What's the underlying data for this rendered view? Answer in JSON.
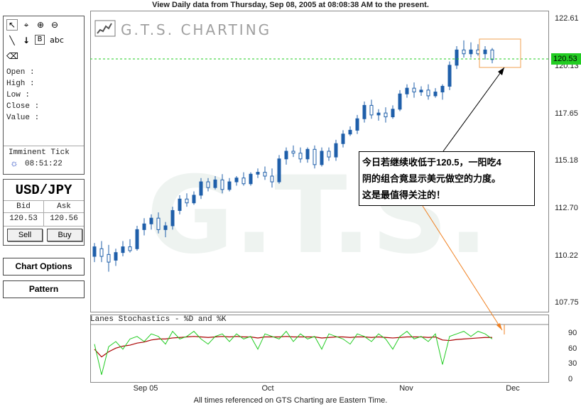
{
  "header": {
    "title": "View Daily  data from Thursday, Sep 08, 2005 at 08:08:38 AM to the present."
  },
  "footer": {
    "text": "All times referenced on GTS Charting are Eastern Time."
  },
  "toolbox": {
    "tools": [
      {
        "name": "pointer-icon",
        "glyph": "↖"
      },
      {
        "name": "crosshair-icon",
        "glyph": "⌖"
      },
      {
        "name": "zoom-in-icon",
        "glyph": "⊕"
      },
      {
        "name": "zoom-out-icon",
        "glyph": "⊖"
      },
      {
        "name": "line-tool-icon",
        "glyph": "╲"
      },
      {
        "name": "arrow-down-icon",
        "glyph": "↓"
      },
      {
        "name": "text-box-icon",
        "glyph": "B"
      },
      {
        "name": "text-tool-icon",
        "glyph": "abc"
      },
      {
        "name": "eraser-icon",
        "glyph": "⌫"
      }
    ],
    "labels": {
      "open": "Open :",
      "high": "High :",
      "low": "Low :",
      "close": "Close :",
      "value": "Value :"
    },
    "imminent_tick_label": "Imminent Tick",
    "imminent_tick_time": "08:51:22",
    "tick_icon": "sun-icon"
  },
  "quote": {
    "pair": "USD/JPY",
    "bid_label": "Bid",
    "ask_label": "Ask",
    "bid": "120.53",
    "ask": "120.56",
    "sell_label": "Sell",
    "buy_label": "Buy"
  },
  "buttons": {
    "chart_options": "Chart Options",
    "pattern": "Pattern"
  },
  "logo": {
    "text": "G.T.S. CHARTING",
    "watermark": "G.T.S."
  },
  "annotation": {
    "text": "今日若继续收低于120.5，一阳吃4\n阴的组合竟显示美元做空的力度。\n这是最值得关注的！"
  },
  "current_price": "120.53",
  "colors": {
    "up_candle": "#1f5faa",
    "price_line": "#22cc22",
    "k_line": "#22cc22",
    "d_line": "#aa0000",
    "highlight_box": "#f0a050",
    "annotation_arrow": "#f08020"
  },
  "chart_data": {
    "type": "candlestick",
    "price_axis": {
      "ticks": [
        "122.61",
        "120.13",
        "117.65",
        "115.18",
        "112.70",
        "110.22",
        "107.75"
      ],
      "ylim": [
        107.75,
        122.61
      ]
    },
    "x_labels": [
      "Sep 05",
      "Oct",
      "Nov",
      "Dec"
    ],
    "indicator": {
      "title": "Lanes Stochastics - %D and %K",
      "ticks": [
        "90",
        "60",
        "30",
        "0"
      ],
      "ylim": [
        0,
        100
      ],
      "k_values": [
        70,
        10,
        65,
        75,
        60,
        80,
        85,
        75,
        90,
        85,
        70,
        95,
        80,
        85,
        95,
        80,
        70,
        85,
        90,
        75,
        90,
        80,
        85,
        60,
        90,
        85,
        80,
        95,
        75,
        90,
        80,
        85,
        60,
        90,
        85,
        80,
        70,
        90,
        85,
        75,
        90,
        80,
        60,
        85,
        95,
        80,
        85,
        75,
        90,
        30,
        85,
        90,
        95,
        85,
        95,
        90,
        80
      ],
      "d_values": [
        60,
        45,
        55,
        62,
        66,
        68,
        72,
        74,
        78,
        80,
        80,
        82,
        83,
        84,
        85,
        84,
        83,
        84,
        85,
        84,
        85,
        84,
        84,
        82,
        84,
        84,
        84,
        85,
        84,
        84,
        84,
        84,
        82,
        83,
        84,
        84,
        83,
        84,
        84,
        83,
        84,
        83,
        82,
        83,
        84,
        84,
        84,
        83,
        84,
        78,
        77,
        79,
        80,
        81,
        82,
        83,
        83
      ]
    },
    "candles": [
      {
        "o": 110.2,
        "h": 110.9,
        "l": 109.9,
        "c": 110.7
      },
      {
        "o": 110.6,
        "h": 111.0,
        "l": 109.9,
        "c": 110.2
      },
      {
        "o": 110.3,
        "h": 110.8,
        "l": 109.4,
        "c": 109.9
      },
      {
        "o": 110.0,
        "h": 110.6,
        "l": 109.7,
        "c": 110.4
      },
      {
        "o": 110.4,
        "h": 111.0,
        "l": 110.2,
        "c": 110.7
      },
      {
        "o": 110.7,
        "h": 111.1,
        "l": 110.4,
        "c": 110.5
      },
      {
        "o": 110.6,
        "h": 111.8,
        "l": 110.5,
        "c": 111.6
      },
      {
        "o": 111.6,
        "h": 112.2,
        "l": 111.3,
        "c": 111.9
      },
      {
        "o": 111.9,
        "h": 112.4,
        "l": 111.6,
        "c": 112.2
      },
      {
        "o": 112.2,
        "h": 112.5,
        "l": 111.4,
        "c": 111.6
      },
      {
        "o": 111.6,
        "h": 112.0,
        "l": 111.2,
        "c": 111.8
      },
      {
        "o": 111.8,
        "h": 112.8,
        "l": 111.6,
        "c": 112.6
      },
      {
        "o": 112.6,
        "h": 113.4,
        "l": 112.4,
        "c": 113.2
      },
      {
        "o": 113.2,
        "h": 113.5,
        "l": 112.8,
        "c": 113.0
      },
      {
        "o": 113.0,
        "h": 113.6,
        "l": 112.9,
        "c": 113.4
      },
      {
        "o": 113.4,
        "h": 114.3,
        "l": 113.2,
        "c": 114.1
      },
      {
        "o": 114.1,
        "h": 114.3,
        "l": 113.6,
        "c": 113.8
      },
      {
        "o": 113.8,
        "h": 114.4,
        "l": 113.7,
        "c": 114.2
      },
      {
        "o": 114.2,
        "h": 114.5,
        "l": 113.5,
        "c": 113.7
      },
      {
        "o": 113.7,
        "h": 114.3,
        "l": 113.6,
        "c": 114.1
      },
      {
        "o": 114.1,
        "h": 114.4,
        "l": 113.9,
        "c": 114.3
      },
      {
        "o": 114.3,
        "h": 114.6,
        "l": 113.9,
        "c": 114.0
      },
      {
        "o": 114.0,
        "h": 114.6,
        "l": 113.9,
        "c": 114.5
      },
      {
        "o": 114.5,
        "h": 114.8,
        "l": 114.3,
        "c": 114.6
      },
      {
        "o": 114.6,
        "h": 114.9,
        "l": 114.2,
        "c": 114.4
      },
      {
        "o": 114.4,
        "h": 114.8,
        "l": 113.8,
        "c": 114.1
      },
      {
        "o": 114.1,
        "h": 115.5,
        "l": 114.0,
        "c": 115.3
      },
      {
        "o": 115.3,
        "h": 115.9,
        "l": 115.0,
        "c": 115.7
      },
      {
        "o": 115.7,
        "h": 116.0,
        "l": 115.4,
        "c": 115.6
      },
      {
        "o": 115.6,
        "h": 115.9,
        "l": 115.1,
        "c": 115.3
      },
      {
        "o": 115.3,
        "h": 115.9,
        "l": 115.1,
        "c": 115.8
      },
      {
        "o": 115.8,
        "h": 116.0,
        "l": 114.8,
        "c": 115.0
      },
      {
        "o": 115.0,
        "h": 115.9,
        "l": 114.9,
        "c": 115.7
      },
      {
        "o": 115.7,
        "h": 115.9,
        "l": 115.2,
        "c": 115.4
      },
      {
        "o": 115.4,
        "h": 116.3,
        "l": 115.2,
        "c": 116.1
      },
      {
        "o": 116.1,
        "h": 116.8,
        "l": 115.9,
        "c": 116.6
      },
      {
        "o": 116.6,
        "h": 117.0,
        "l": 116.5,
        "c": 116.8
      },
      {
        "o": 116.8,
        "h": 117.6,
        "l": 116.6,
        "c": 117.4
      },
      {
        "o": 117.4,
        "h": 118.3,
        "l": 117.2,
        "c": 118.1
      },
      {
        "o": 118.1,
        "h": 118.4,
        "l": 117.4,
        "c": 117.6
      },
      {
        "o": 117.6,
        "h": 117.9,
        "l": 117.3,
        "c": 117.7
      },
      {
        "o": 117.7,
        "h": 118.0,
        "l": 117.2,
        "c": 117.5
      },
      {
        "o": 117.5,
        "h": 118.1,
        "l": 117.4,
        "c": 117.9
      },
      {
        "o": 117.9,
        "h": 118.9,
        "l": 117.8,
        "c": 118.7
      },
      {
        "o": 118.7,
        "h": 119.2,
        "l": 118.5,
        "c": 119.0
      },
      {
        "o": 119.0,
        "h": 119.3,
        "l": 118.5,
        "c": 118.8
      },
      {
        "o": 118.8,
        "h": 119.1,
        "l": 118.6,
        "c": 118.9
      },
      {
        "o": 118.9,
        "h": 119.2,
        "l": 118.4,
        "c": 118.6
      },
      {
        "o": 118.6,
        "h": 119.0,
        "l": 118.5,
        "c": 118.8
      },
      {
        "o": 118.8,
        "h": 119.2,
        "l": 118.4,
        "c": 119.1
      },
      {
        "o": 119.1,
        "h": 120.4,
        "l": 118.9,
        "c": 120.2
      },
      {
        "o": 120.2,
        "h": 121.2,
        "l": 120.0,
        "c": 121.0
      },
      {
        "o": 121.0,
        "h": 121.5,
        "l": 120.6,
        "c": 120.8
      },
      {
        "o": 120.8,
        "h": 121.4,
        "l": 120.6,
        "c": 121.0
      },
      {
        "o": 121.0,
        "h": 121.3,
        "l": 120.7,
        "c": 120.8
      },
      {
        "o": 120.8,
        "h": 121.2,
        "l": 120.5,
        "c": 121.0
      },
      {
        "o": 121.0,
        "h": 121.1,
        "l": 120.3,
        "c": 120.5
      }
    ]
  }
}
